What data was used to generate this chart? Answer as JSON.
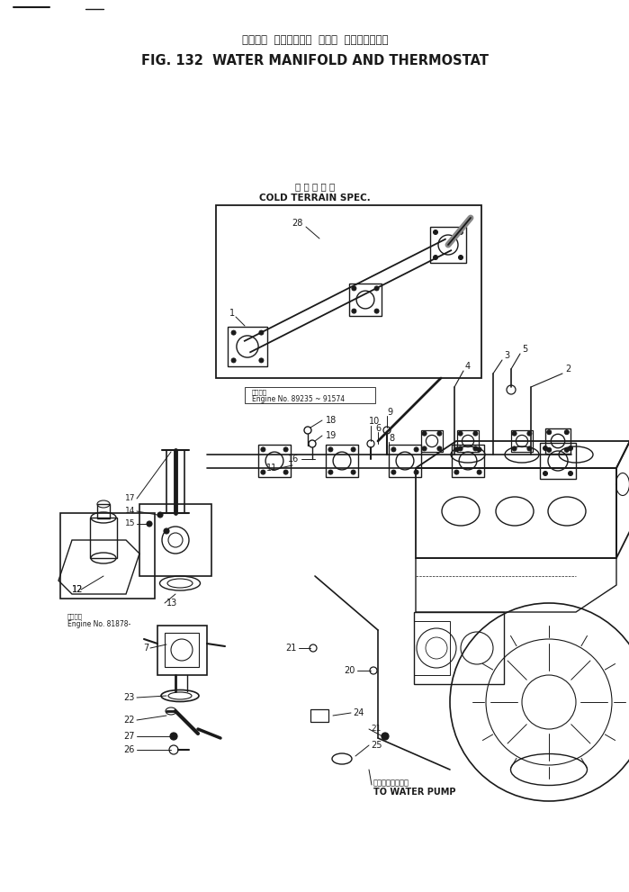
{
  "title_japanese": "ウォータ  マニホールド  および  サーモスタット",
  "title_english": "FIG. 132  WATER MANIFOLD AND THERMOSTAT",
  "cold_terrain_japanese": "寒 冷 地 仕 様",
  "cold_terrain_english": "COLD TERRAIN SPEC.",
  "engine_no_label": "Engine No. 89235 ~ 91574",
  "engine_no_label2": "Engine No. 81878-",
  "water_pump_japanese": "ウォータポンプヘ",
  "water_pump_english": "TO WATER PUMP",
  "bg_color": "#ffffff",
  "line_color": "#1a1a1a",
  "fig_width": 6.99,
  "fig_height": 9.91,
  "dpi": 100
}
